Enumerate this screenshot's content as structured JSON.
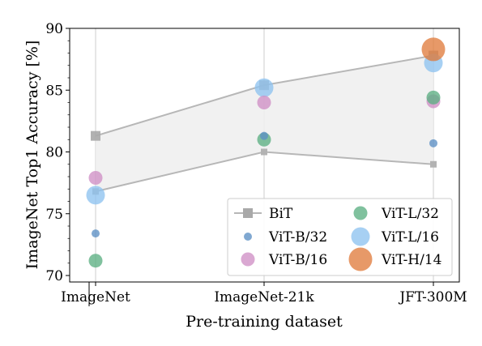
{
  "chart_data": {
    "type": "scatter",
    "xlabel": "Pre-training dataset",
    "ylabel": "ImageNet Top1 Accuracy [%]",
    "categories": [
      "ImageNet",
      "ImageNet-21k",
      "JFT-300M"
    ],
    "ylim": [
      69.5,
      90
    ],
    "yticks": [
      70,
      75,
      80,
      85,
      90
    ],
    "grid": true,
    "legend_position": "lower-right",
    "bit_band": {
      "name": "BiT",
      "upper": [
        81.3,
        85.4,
        87.8
      ],
      "lower": [
        76.8,
        80.0,
        79.0
      ],
      "color": "#b7b7b7"
    },
    "series": [
      {
        "name": "ViT-B/32",
        "values": [
          73.4,
          81.3,
          80.7
        ],
        "color": "#5c8fc4",
        "size": "small"
      },
      {
        "name": "ViT-B/16",
        "values": [
          77.9,
          84.0,
          84.1
        ],
        "color": "#d08fc5",
        "size": "medium"
      },
      {
        "name": "ViT-L/32",
        "values": [
          71.2,
          81.0,
          84.4
        ],
        "color": "#5cb083",
        "size": "medium"
      },
      {
        "name": "ViT-L/16",
        "values": [
          76.5,
          85.2,
          87.2
        ],
        "color": "#8ec3ef",
        "size": "large"
      },
      {
        "name": "ViT-H/14",
        "values": [
          null,
          null,
          88.3
        ],
        "color": "#e07c3e",
        "size": "xlarge"
      }
    ]
  }
}
